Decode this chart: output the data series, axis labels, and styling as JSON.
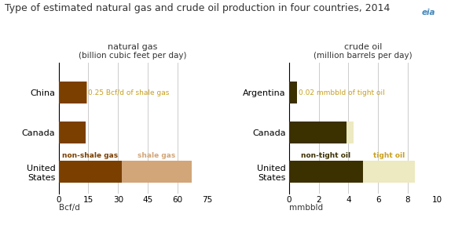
{
  "title": "Type of estimated natural gas and crude oil production in four countries, 2014",
  "gas_panel": {
    "subtitle": "natural gas",
    "subtitle2": "(billion cubic feet per day)",
    "countries": [
      "China",
      "Canada",
      "United\nStates"
    ],
    "non_shale": [
      14.0,
      13.5,
      32.0
    ],
    "shale": [
      0.25,
      0.0,
      35.0
    ],
    "xlabel": "Bcf/d",
    "xlim": [
      0,
      75
    ],
    "xticks": [
      0,
      15,
      30,
      45,
      60,
      75
    ],
    "annotation_china": "0.25 Bcf/d of shale gas",
    "label_nonshale": "non-shale gas",
    "label_shale": "shale gas",
    "color_nonshale": "#7B3F00",
    "color_shale": "#D2A679"
  },
  "oil_panel": {
    "subtitle": "crude oil",
    "subtitle2": "(million barrels per day)",
    "countries": [
      "Argentina",
      "Canada",
      "United\nStates"
    ],
    "non_tight": [
      0.55,
      3.9,
      5.0
    ],
    "tight": [
      0.02,
      0.45,
      3.5
    ],
    "xlabel": "mmbbld",
    "xlim": [
      0,
      10
    ],
    "xticks": [
      0,
      2,
      4,
      6,
      8,
      10
    ],
    "annotation_arg": "0.02 mmbbld of tight oil",
    "label_nontight": "non-tight oil",
    "label_tight": "tight oil",
    "color_nontight": "#3B3000",
    "color_tight": "#EDE9C0"
  },
  "bar_height": 0.55,
  "bg_color": "#FFFFFF",
  "text_color": "#333333",
  "annotation_color": "#C8A020",
  "grid_color": "#CCCCCC",
  "title_fontsize": 9.0,
  "label_fontsize": 8,
  "tick_fontsize": 7.5,
  "country_fontsize": 8
}
